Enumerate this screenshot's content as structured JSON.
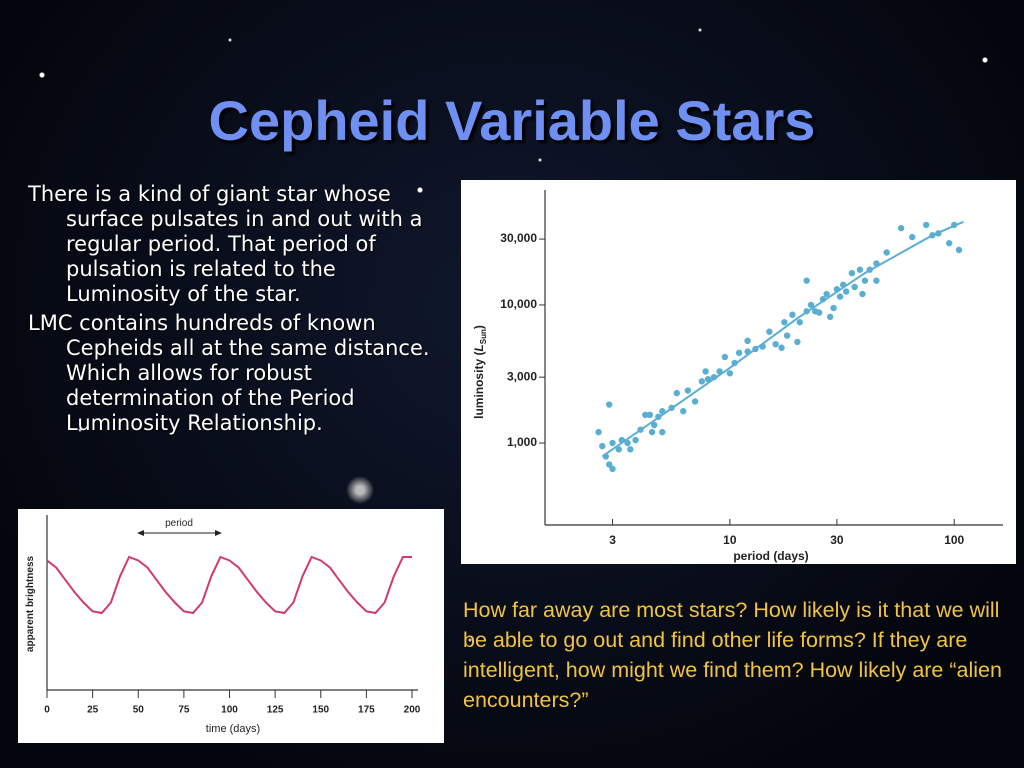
{
  "title": "Cepheid Variable Stars",
  "bullets": [
    "There is a kind of giant star whose surface pulsates in and out with a regular period. That period of pulsation is related to the Luminosity of the star.",
    "LMC contains hundreds of known Cepheids all at the same distance. Which allows for robust determination of the Period Luminosity Relationship."
  ],
  "note": "How far away are most stars? How likely is it that we will be able to go out and find other life forms? If they are intelligent, how might we find them? How likely are “alien encounters?”",
  "chart_data": [
    {
      "type": "line",
      "annotation": "period",
      "xlabel": "time (days)",
      "ylabel": "apparent brightness",
      "color": "#d23a6e",
      "xlim": [
        0,
        200
      ],
      "xticks": [
        0,
        25,
        50,
        75,
        100,
        125,
        150,
        175,
        200
      ],
      "ylim": [
        0,
        10
      ],
      "x": [
        0,
        5,
        10,
        15,
        20,
        25,
        30,
        35,
        40,
        45,
        50,
        55,
        60,
        65,
        70,
        75,
        80,
        85,
        90,
        95,
        100,
        105,
        110,
        115,
        120,
        125,
        130,
        135,
        140,
        145,
        150,
        155,
        160,
        165,
        170,
        175,
        180,
        185,
        190,
        195,
        200
      ],
      "values": [
        7.4,
        7.0,
        6.3,
        5.6,
        5.0,
        4.5,
        4.4,
        5.0,
        6.5,
        7.6,
        7.4,
        7.0,
        6.3,
        5.6,
        5.0,
        4.5,
        4.4,
        5.0,
        6.5,
        7.6,
        7.4,
        7.0,
        6.3,
        5.6,
        5.0,
        4.5,
        4.4,
        5.0,
        6.5,
        7.6,
        7.4,
        7.0,
        6.3,
        5.6,
        5.0,
        4.5,
        4.4,
        5.0,
        6.5,
        7.6,
        7.6
      ]
    },
    {
      "type": "scatter",
      "xlabel": "period (days)",
      "ylabel": [
        "luminosity (",
        "L",
        "Sun",
        ")"
      ],
      "color": "#5aaed2",
      "xscale": "log",
      "yscale": "log",
      "xlim": [
        1.5,
        165
      ],
      "ylim": [
        255,
        68000
      ],
      "xticks": [
        3,
        10,
        30,
        100
      ],
      "yticks": [
        {
          "value": 1000,
          "label": "1,000"
        },
        {
          "value": 3000,
          "label": "3,000"
        },
        {
          "value": 10000,
          "label": "10,000"
        },
        {
          "value": 30000,
          "label": "30,000"
        }
      ],
      "x": [
        2.6,
        2.7,
        2.8,
        2.9,
        3.0,
        2.9,
        3.0,
        3.2,
        3.3,
        3.5,
        3.6,
        3.8,
        4.0,
        4.2,
        4.4,
        4.5,
        4.6,
        4.8,
        5.0,
        5.0,
        5.5,
        5.8,
        6.2,
        6.5,
        7.0,
        7.5,
        7.8,
        8.0,
        8.5,
        9.0,
        9.5,
        10,
        10.5,
        11,
        12,
        12,
        13,
        14,
        15,
        16,
        17,
        17.5,
        18,
        19,
        20,
        20.5,
        22,
        22,
        23,
        24,
        25,
        26,
        27,
        28,
        29,
        30,
        31,
        32,
        33,
        35,
        36,
        38,
        39,
        40,
        42,
        45,
        45,
        50,
        58,
        65,
        75,
        80,
        85,
        95,
        100,
        105
      ],
      "values": [
        1200,
        950,
        800,
        700,
        650,
        1900,
        1000,
        900,
        1050,
        1000,
        900,
        1050,
        1250,
        1600,
        1600,
        1200,
        1350,
        1550,
        1700,
        1200,
        1800,
        2300,
        1700,
        2400,
        2000,
        2800,
        3300,
        2900,
        3000,
        3300,
        4200,
        3200,
        3800,
        4500,
        5500,
        4600,
        4800,
        5000,
        6400,
        5200,
        4900,
        7500,
        6000,
        8500,
        5400,
        7500,
        15000,
        9000,
        10000,
        9000,
        8800,
        11000,
        12000,
        8200,
        9500,
        13000,
        11500,
        14000,
        12500,
        17000,
        13500,
        18000,
        12000,
        15000,
        18000,
        20000,
        15000,
        24000,
        36000,
        31000,
        38000,
        32000,
        33000,
        28000,
        38000,
        25000
      ],
      "fit": {
        "color": "#5aaed2",
        "x": [
          2.7,
          5,
          10,
          20,
          40,
          80,
          110
        ],
        "values": [
          800,
          1600,
          3500,
          8000,
          17000,
          32000,
          40000
        ]
      }
    }
  ]
}
